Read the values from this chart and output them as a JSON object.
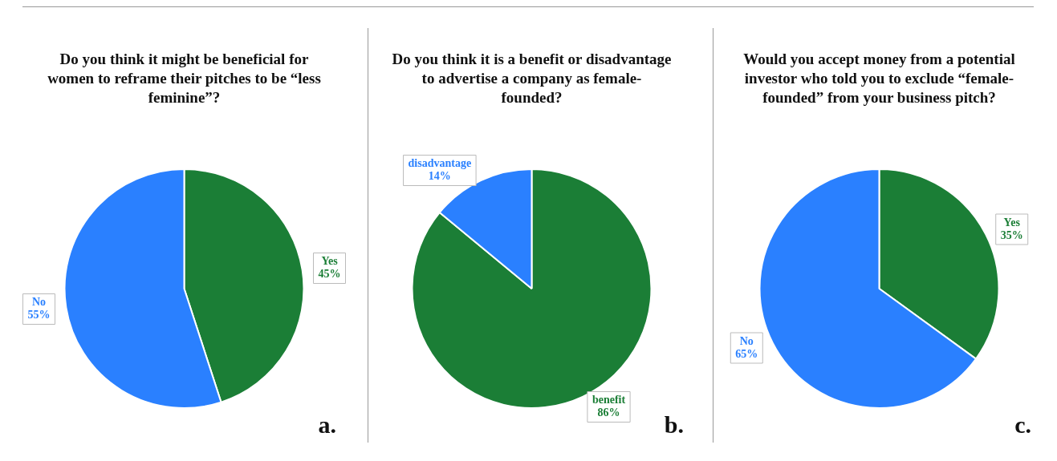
{
  "chart_data": [
    {
      "type": "pie",
      "title": "Do you think it might be beneficial for women to reframe their pitches to be “less feminine”?",
      "categories": [
        "Yes",
        "No"
      ],
      "values": [
        45,
        55
      ],
      "colors": [
        "#1b7e36",
        "#2a80ff"
      ],
      "value_labels": [
        "45%",
        "55%"
      ],
      "annotations": [
        "a."
      ]
    },
    {
      "type": "pie",
      "title": "Do you think it is a benefit or disadvantage to advertise a company as female-founded?",
      "categories": [
        "benefit",
        "disadvantage"
      ],
      "values": [
        86,
        14
      ],
      "colors": [
        "#1b7e36",
        "#2a80ff"
      ],
      "value_labels": [
        "86%",
        "14%"
      ],
      "annotations": [
        "b."
      ]
    },
    {
      "type": "pie",
      "title": "Would you accept money from a potential investor who told you to exclude “female-founded” from your business pitch?",
      "categories": [
        "Yes",
        "No"
      ],
      "values": [
        35,
        65
      ],
      "colors": [
        "#1b7e36",
        "#2a80ff"
      ],
      "value_labels": [
        "35%",
        "65%"
      ],
      "annotations": [
        "c."
      ]
    }
  ]
}
